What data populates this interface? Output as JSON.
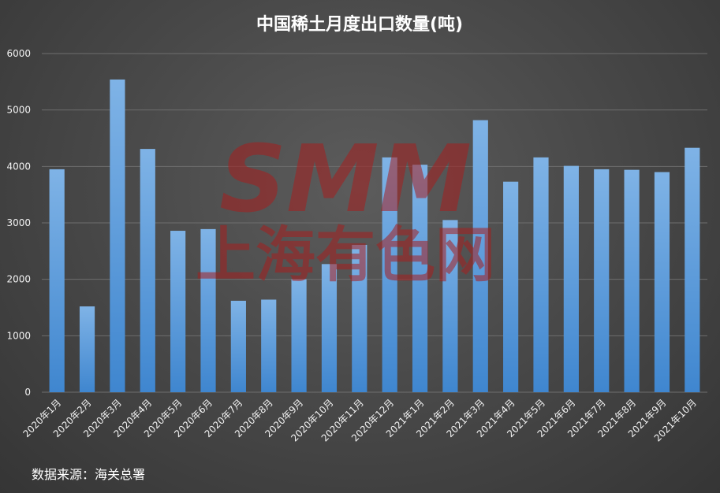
{
  "chart_data": {
    "type": "bar",
    "title": "中国稀土月度出口数量(吨)",
    "xlabel": "",
    "ylabel": "",
    "ylim": [
      0,
      6000
    ],
    "yticks": [
      0,
      1000,
      2000,
      3000,
      4000,
      5000,
      6000
    ],
    "grid": true,
    "categories": [
      "2020年1月",
      "2020年2月",
      "2020年3月",
      "2020年4月",
      "2020年5月",
      "2020年6月",
      "2020年7月",
      "2020年8月",
      "2020年9月",
      "2020年10月",
      "2020年11月",
      "2020年12月",
      "2021年1月",
      "2021年2月",
      "2021年3月",
      "2021年4月",
      "2021年5月",
      "2021年6月",
      "2021年7月",
      "2021年8月",
      "2021年9月",
      "2021年10月"
    ],
    "values": [
      3950,
      1520,
      5540,
      4310,
      2860,
      2890,
      1620,
      1640,
      2000,
      2270,
      2610,
      4160,
      4030,
      3050,
      4820,
      3730,
      4160,
      4010,
      3950,
      3940,
      3900,
      4330
    ],
    "bar_color": "#5b9bd5"
  },
  "source_note": "数据来源：海关总署",
  "watermark": {
    "brand": "SMM",
    "chinese": "上海有色网",
    "color": "#a61f1f"
  }
}
